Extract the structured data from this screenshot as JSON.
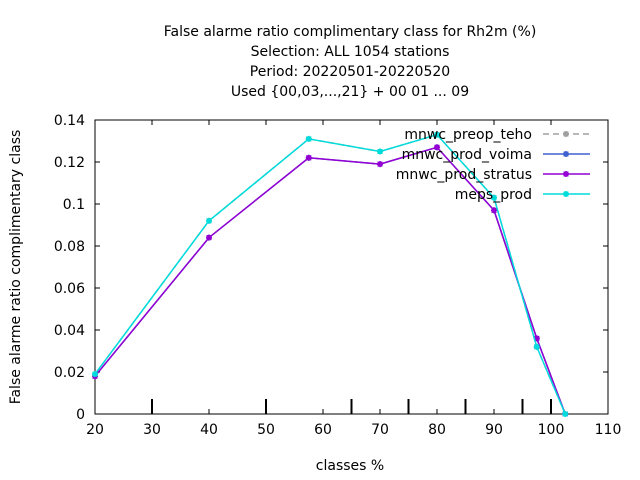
{
  "chart_data": {
    "type": "line",
    "title_lines": [
      "False alarme ratio complimentary class  for Rh2m (%)",
      "Selection: ALL   1054 stations",
      "Period: 20220501-20220520",
      "Used {00,03,...,21} + 00 01 ... 09"
    ],
    "xlabel": "classes %",
    "ylabel": "False alarme ratio complimentary class",
    "xlim": [
      20,
      110
    ],
    "ylim": [
      0,
      0.14
    ],
    "x_ticks": [
      "20",
      "30",
      "40",
      "50",
      "60",
      "70",
      "80",
      "90",
      "100",
      "110"
    ],
    "y_ticks": [
      "0",
      "0.02",
      "0.04",
      "0.06",
      "0.08",
      "0.1",
      "0.12",
      "0.14"
    ],
    "class_marks": [
      30,
      50,
      65,
      75,
      85,
      95,
      100
    ],
    "legend_position": "top-right",
    "grid": false,
    "series": [
      {
        "name": "mnwc_preop_teho",
        "color": "#a0a0a0",
        "dashed": true,
        "x": [
          20,
          40,
          57.5,
          70,
          80,
          90,
          97.5,
          102.5
        ],
        "y": [
          0.019,
          0.092,
          0.131,
          0.125,
          0.133,
          0.103,
          0.032,
          0.0
        ]
      },
      {
        "name": "mnwc_prod_voima",
        "color": "#4060d0",
        "dashed": false,
        "x": [
          20,
          40,
          57.5,
          70,
          80,
          90,
          97.5,
          102.5
        ],
        "y": [
          0.018,
          0.084,
          0.122,
          0.119,
          0.127,
          0.097,
          0.036,
          0.0
        ]
      },
      {
        "name": "mnwc_prod_stratus",
        "color": "#9400d3",
        "dashed": false,
        "x": [
          20,
          40,
          57.5,
          70,
          80,
          90,
          97.5,
          102.5
        ],
        "y": [
          0.018,
          0.084,
          0.122,
          0.119,
          0.127,
          0.097,
          0.036,
          0.0
        ]
      },
      {
        "name": "meps_prod",
        "color": "#00dcdc",
        "dashed": false,
        "x": [
          20,
          40,
          57.5,
          70,
          80,
          90,
          97.5,
          102.5
        ],
        "y": [
          0.019,
          0.092,
          0.131,
          0.125,
          0.133,
          0.103,
          0.032,
          0.0
        ]
      }
    ]
  }
}
